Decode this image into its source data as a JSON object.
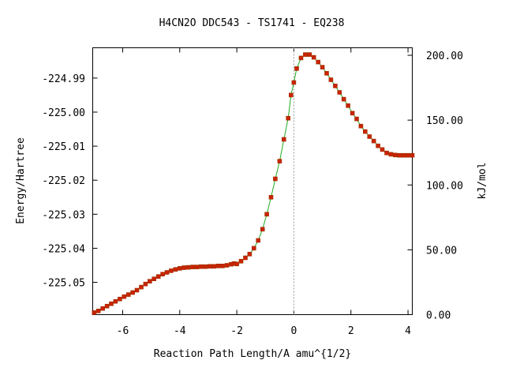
{
  "chart_data": {
    "type": "scatter",
    "title": "H4CN2O   DDC543 - TS1741 - EQ238",
    "xlabel": "Reaction Path Length/A amu^{1/2}",
    "ylabel": "Energy/Hartree",
    "y2label": "kJ/mol",
    "xlim": [
      -7.05,
      4.15
    ],
    "ylim": [
      -225.0595,
      -224.9811
    ],
    "y2lim": [
      0.0,
      205.8
    ],
    "x_ticks": [
      -6,
      -4,
      -2,
      0,
      2,
      4
    ],
    "x_tick_labels": [
      "-6",
      "-4",
      "-2",
      "0",
      "2",
      "4"
    ],
    "y_ticks": [
      -224.99,
      -225.0,
      -225.01,
      -225.02,
      -225.03,
      -225.04,
      -225.05
    ],
    "y_tick_labels": [
      "-224.99",
      "-225.00",
      "-225.01",
      "-225.02",
      "-225.03",
      "-225.04",
      "-225.05"
    ],
    "y2_ticks": [
      0,
      50,
      100,
      150,
      200
    ],
    "y2_tick_labels": [
      "0.00",
      "50.00",
      "100.00",
      "150.00",
      "200.00"
    ],
    "ts_x": 0,
    "series": [
      {
        "color_line": "#22aa22",
        "color_marker": "#cc2200",
        "x": [
          -7.0,
          -6.85,
          -6.7,
          -6.55,
          -6.4,
          -6.25,
          -6.1,
          -5.95,
          -5.8,
          -5.65,
          -5.5,
          -5.35,
          -5.2,
          -5.05,
          -4.9,
          -4.75,
          -4.6,
          -4.45,
          -4.3,
          -4.15,
          -4.0,
          -3.85,
          -3.7,
          -3.55,
          -3.4,
          -3.25,
          -3.1,
          -2.95,
          -2.8,
          -2.65,
          -2.5,
          -2.35,
          -2.2,
          -2.1,
          -2.0,
          -1.85,
          -1.7,
          -1.55,
          -1.4,
          -1.25,
          -1.1,
          -0.95,
          -0.8,
          -0.65,
          -0.5,
          -0.35,
          -0.2,
          -0.1,
          0.0,
          0.1,
          0.25,
          0.4,
          0.55,
          0.7,
          0.85,
          1.0,
          1.15,
          1.3,
          1.45,
          1.6,
          1.75,
          1.9,
          2.05,
          2.2,
          2.35,
          2.5,
          2.65,
          2.8,
          2.95,
          3.1,
          3.25,
          3.4,
          3.55,
          3.7,
          3.85,
          4.0,
          4.15
        ],
        "y": [
          -225.0589,
          -225.0584,
          -225.0577,
          -225.057,
          -225.0563,
          -225.0556,
          -225.0549,
          -225.0542,
          -225.0536,
          -225.053,
          -225.0523,
          -225.0514,
          -225.0505,
          -225.0497,
          -225.049,
          -225.0483,
          -225.0476,
          -225.0471,
          -225.0466,
          -225.0462,
          -225.0459,
          -225.0457,
          -225.0456,
          -225.0455,
          -225.0455,
          -225.0454,
          -225.0454,
          -225.0453,
          -225.0453,
          -225.0452,
          -225.0452,
          -225.045,
          -225.0447,
          -225.0445,
          -225.0446,
          -225.0438,
          -225.0428,
          -225.0417,
          -225.04,
          -225.0377,
          -225.0344,
          -225.03,
          -225.025,
          -225.0196,
          -225.0144,
          -225.008,
          -225.0018,
          -224.995,
          -224.9913,
          -224.9872,
          -224.9841,
          -224.9831,
          -224.9831,
          -224.9839,
          -224.9853,
          -224.9868,
          -224.9886,
          -224.9905,
          -224.9923,
          -224.9942,
          -224.9962,
          -224.9981,
          -225.0003,
          -225.002,
          -225.0041,
          -225.0057,
          -225.0072,
          -225.0085,
          -225.0099,
          -225.011,
          -225.012,
          -225.0124,
          -225.0126,
          -225.0127,
          -225.0127,
          -225.0127,
          -225.0127
        ]
      }
    ]
  }
}
